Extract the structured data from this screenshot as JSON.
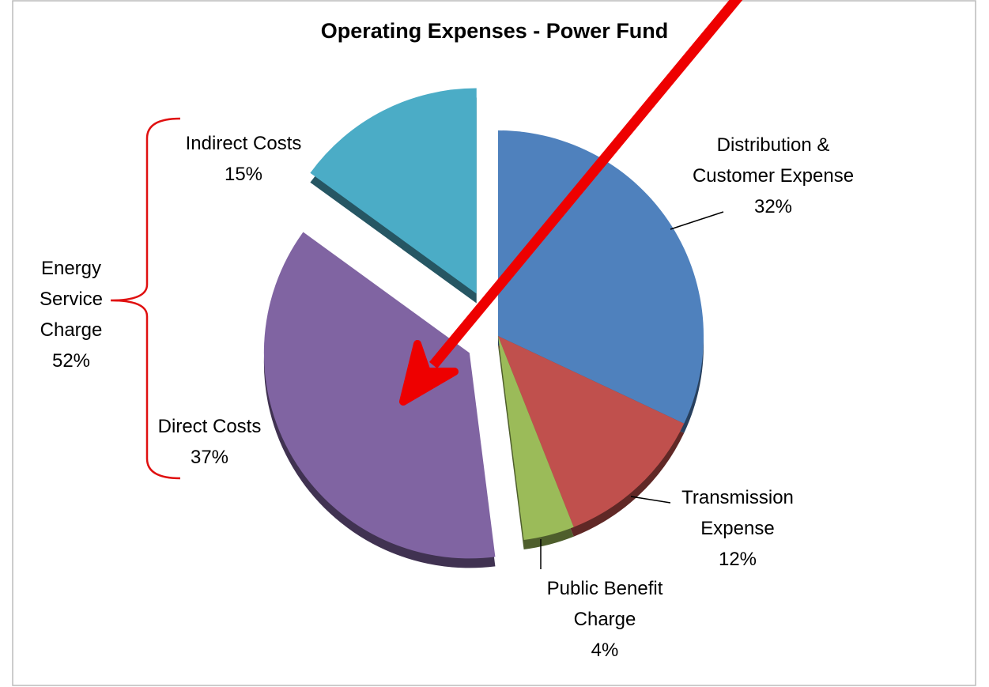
{
  "chart_data": {
    "type": "pie",
    "title": "Operating Expenses - Power Fund",
    "categories": [
      "Distribution & Customer Expense",
      "Transmission Expense",
      "Public Benefit Charge",
      "Direct Costs",
      "Indirect Costs"
    ],
    "values": [
      32,
      12,
      4,
      37,
      15
    ],
    "value_labels": [
      "32%",
      "12%",
      "4%",
      "37%",
      "15%"
    ],
    "colors": [
      "#4f81bd",
      "#c0504d",
      "#9bbb59",
      "#8064a2",
      "#4bacc6"
    ],
    "annotation": "Energy Service Charge 52%"
  }
}
